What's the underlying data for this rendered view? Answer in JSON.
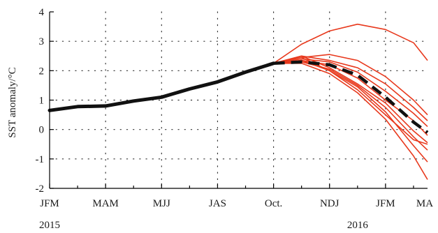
{
  "chart_data": {
    "type": "line",
    "ylabel": "SST anomaly/°C",
    "ylim": [
      -2,
      4
    ],
    "yticks": [
      -2,
      -1,
      0,
      1,
      2,
      3,
      4
    ],
    "xlim": [
      0,
      13.5
    ],
    "xticks": [
      {
        "x": 0,
        "label": "JFM"
      },
      {
        "x": 2,
        "label": "MAM"
      },
      {
        "x": 4,
        "label": "MJJ"
      },
      {
        "x": 6,
        "label": "JAS"
      },
      {
        "x": 8,
        "label": "Oct."
      },
      {
        "x": 10,
        "label": "NDJ"
      },
      {
        "x": 12,
        "label": "JFM"
      },
      {
        "x": 14,
        "label": "MA"
      }
    ],
    "year_labels": [
      {
        "x": 0,
        "label": "2015"
      },
      {
        "x": 11,
        "label": "2016"
      }
    ],
    "grid": true,
    "colors": {
      "observed": "#111111",
      "ensemble_mean": "#111111",
      "members": "#e8391d"
    },
    "observed": {
      "x": [
        0,
        1,
        2,
        3,
        4,
        5,
        6,
        7,
        8
      ],
      "y": [
        0.65,
        0.78,
        0.8,
        0.97,
        1.1,
        1.38,
        1.62,
        1.95,
        2.25
      ]
    },
    "ensemble_mean": {
      "x": [
        8,
        9,
        10,
        11,
        12,
        13,
        13.5
      ],
      "y": [
        2.25,
        2.3,
        2.2,
        1.85,
        1.1,
        0.25,
        -0.1
      ]
    },
    "members": [
      {
        "x": [
          8,
          9,
          10,
          11,
          12,
          13,
          13.5
        ],
        "y": [
          2.25,
          2.9,
          3.35,
          3.58,
          3.4,
          2.95,
          2.35
        ]
      },
      {
        "x": [
          8,
          9,
          10,
          11,
          12,
          13,
          13.5
        ],
        "y": [
          2.25,
          2.45,
          2.55,
          2.35,
          1.8,
          1.0,
          0.5
        ]
      },
      {
        "x": [
          8,
          9,
          10,
          11,
          12,
          13,
          13.5
        ],
        "y": [
          2.25,
          2.5,
          2.35,
          2.1,
          1.55,
          0.75,
          0.3
        ]
      },
      {
        "x": [
          8,
          9,
          10,
          11,
          12,
          13,
          13.5
        ],
        "y": [
          2.25,
          2.4,
          2.3,
          1.95,
          1.3,
          0.55,
          0.1
        ]
      },
      {
        "x": [
          8,
          9,
          10,
          11,
          12,
          13,
          13.5
        ],
        "y": [
          2.25,
          2.35,
          2.2,
          1.75,
          1.0,
          0.3,
          -0.2
        ]
      },
      {
        "x": [
          8,
          9,
          10,
          11,
          12,
          13,
          13.5
        ],
        "y": [
          2.25,
          2.5,
          2.1,
          1.55,
          0.9,
          -0.05,
          -0.45
        ]
      },
      {
        "x": [
          8,
          9,
          10,
          11,
          12,
          13,
          13.5
        ],
        "y": [
          2.25,
          2.3,
          2.05,
          1.5,
          0.75,
          -0.25,
          -0.7
        ]
      },
      {
        "x": [
          8,
          9,
          10,
          11,
          12,
          13,
          13.5
        ],
        "y": [
          2.25,
          2.45,
          2.0,
          1.45,
          0.6,
          -0.55,
          -1.1
        ]
      },
      {
        "x": [
          8,
          9,
          10,
          11,
          12,
          13,
          13.5
        ],
        "y": [
          2.25,
          2.25,
          1.9,
          1.25,
          0.35,
          -0.9,
          -1.7
        ]
      },
      {
        "x": [
          8,
          9,
          10,
          11,
          12,
          13,
          13.5
        ],
        "y": [
          2.25,
          2.35,
          2.0,
          1.35,
          0.5,
          -0.35,
          -0.5
        ]
      }
    ]
  }
}
